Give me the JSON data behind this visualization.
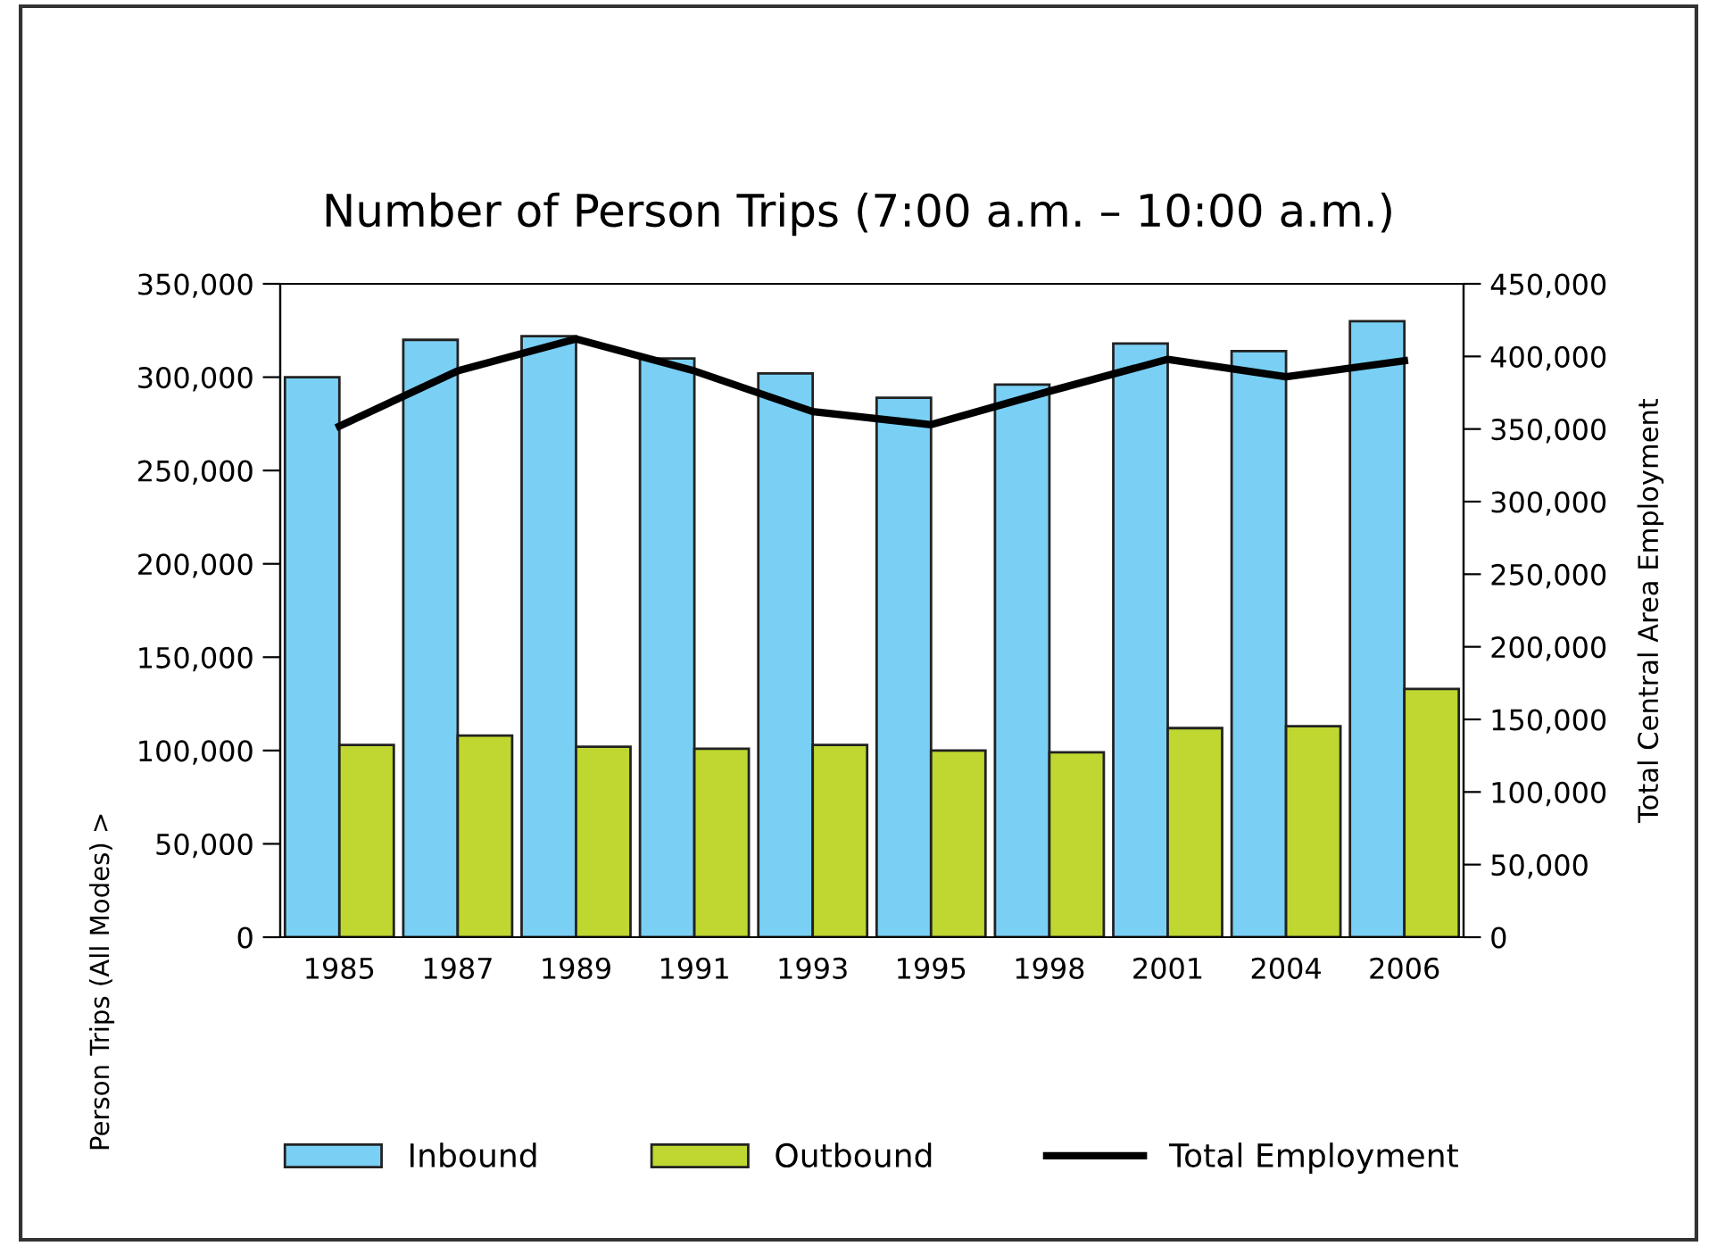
{
  "chart_data": {
    "type": "bar",
    "title": "Number of Person Trips (7:00 a.m. – 10:00 a.m.)",
    "ylabel": "Person Trips (All Modes) >",
    "y2label": "Total Central Area Employment",
    "categories": [
      "1985",
      "1987",
      "1989",
      "1991",
      "1993",
      "1995",
      "1998",
      "2001",
      "2004",
      "2006"
    ],
    "series": [
      {
        "name": "Inbound",
        "color": "#7ad0f4",
        "values": [
          300000,
          320000,
          322000,
          310000,
          302000,
          289000,
          296000,
          318000,
          314000,
          330000
        ]
      },
      {
        "name": "Outbound",
        "color": "#bfd730",
        "values": [
          103000,
          108000,
          102000,
          101000,
          103000,
          100000,
          99000,
          112000,
          113000,
          133000
        ]
      },
      {
        "name": "Total Employment",
        "type": "line",
        "axis": "y2",
        "color": "#000000",
        "values": [
          352000,
          390000,
          412000,
          390000,
          362000,
          353000,
          376000,
          398000,
          386000,
          397000
        ]
      }
    ],
    "ylim": [
      0,
      350000
    ],
    "yticks": [
      {
        "value": 0,
        "label": "0"
      },
      {
        "value": 50000,
        "label": "50,000"
      },
      {
        "value": 100000,
        "label": "100,000"
      },
      {
        "value": 150000,
        "label": "150,000"
      },
      {
        "value": 200000,
        "label": "200,000"
      },
      {
        "value": 250000,
        "label": "250,000"
      },
      {
        "value": 300000,
        "label": "300,000"
      },
      {
        "value": 350000,
        "label": "350,000"
      }
    ],
    "y2lim": [
      0,
      450000
    ],
    "y2ticks": [
      {
        "value": 0,
        "label": "0"
      },
      {
        "value": 50000,
        "label": "50,000"
      },
      {
        "value": 100000,
        "label": "100,000"
      },
      {
        "value": 150000,
        "label": "150,000"
      },
      {
        "value": 200000,
        "label": "200,000"
      },
      {
        "value": 250000,
        "label": "250,000"
      },
      {
        "value": 300000,
        "label": "300,000"
      },
      {
        "value": 350000,
        "label": "350,000"
      },
      {
        "value": 400000,
        "label": "400,000"
      },
      {
        "value": 450000,
        "label": "450,000"
      }
    ],
    "grid": false,
    "legend": "bottom",
    "marker": "none",
    "line_style": "solid"
  }
}
